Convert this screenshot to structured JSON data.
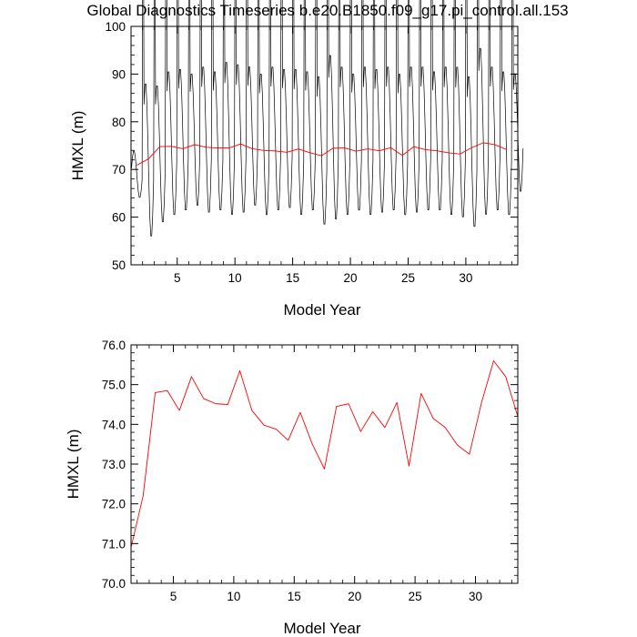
{
  "title": "Global Diagnostics Timeseries b.e20.B1850.f09_g17.pi_control.all.153",
  "colors": {
    "monthly": "#000000",
    "annual": "#ff0000",
    "frame": "#000000"
  },
  "chart_data": [
    {
      "type": "line",
      "xlabel": "Model Year",
      "ylabel": "HMXL (m)",
      "xlim": [
        1,
        34.5
      ],
      "ylim": [
        50,
        100
      ],
      "x_ticks": [
        5,
        10,
        15,
        20,
        25,
        30
      ],
      "x_tick_labels": [
        "5",
        "10",
        "15",
        "20",
        "25",
        "30"
      ],
      "y_ticks": [
        50,
        60,
        70,
        80,
        90,
        100
      ],
      "y_tick_labels": [
        "50",
        "60",
        "70",
        "80",
        "90",
        "100"
      ],
      "grid": false,
      "series": [
        {
          "color": "#000000",
          "resolution": "monthly",
          "start_year": 1.04,
          "months_per_year": 12,
          "yearly_max": [
            74,
            88.5,
            88,
            91,
            91.5,
            90.5,
            92,
            91,
            93,
            92.5,
            92,
            90.5,
            92,
            91.5,
            91.5,
            91,
            90,
            94.5,
            92,
            90.5,
            92,
            91.5,
            92,
            90.5,
            92,
            92,
            91,
            92,
            92,
            90,
            96,
            92,
            91,
            90.5
          ],
          "yearly_min": [
            64,
            55.5,
            58.5,
            60,
            61,
            62,
            60.5,
            61,
            60,
            60.5,
            62,
            60,
            61,
            61.5,
            60,
            61,
            58,
            59,
            60,
            61,
            60,
            60.5,
            61,
            60,
            60.5,
            61,
            61,
            60,
            59.5,
            57.5,
            60,
            61,
            60,
            65
          ]
        },
        {
          "color": "#ff0000",
          "resolution": "annual",
          "x": [
            1.5,
            2.5,
            3.5,
            4.5,
            5.5,
            6.5,
            7.5,
            8.5,
            9.5,
            10.5,
            11.5,
            12.5,
            13.5,
            14.5,
            15.5,
            16.5,
            17.5,
            18.5,
            19.5,
            20.5,
            21.5,
            22.5,
            23.5,
            24.5,
            25.5,
            26.5,
            27.5,
            28.5,
            29.5,
            30.5,
            31.5,
            32.5,
            33.5
          ],
          "values": [
            70.9,
            72.2,
            74.8,
            74.85,
            74.35,
            75.2,
            74.65,
            74.52,
            74.5,
            75.35,
            74.35,
            73.98,
            73.88,
            73.6,
            74.3,
            73.5,
            72.88,
            74.45,
            74.52,
            73.82,
            74.32,
            73.92,
            74.55,
            72.95,
            74.78,
            74.15,
            73.92,
            73.48,
            73.25,
            74.55,
            75.6,
            75.2,
            74.2
          ]
        }
      ]
    },
    {
      "type": "line",
      "xlabel": "Model Year",
      "ylabel": "HMXL (m)",
      "xlim": [
        1.5,
        33.5
      ],
      "ylim": [
        70,
        76
      ],
      "x_ticks": [
        5,
        10,
        15,
        20,
        25,
        30
      ],
      "x_tick_labels": [
        "5",
        "10",
        "15",
        "20",
        "25",
        "30"
      ],
      "y_ticks": [
        70,
        71,
        72,
        73,
        74,
        75,
        76
      ],
      "y_tick_labels": [
        "70.0",
        "71.0",
        "72.0",
        "73.0",
        "74.0",
        "75.0",
        "76.0"
      ],
      "grid": false,
      "series": [
        {
          "color": "#ff0000",
          "resolution": "annual",
          "x": [
            1.5,
            2.5,
            3.5,
            4.5,
            5.5,
            6.5,
            7.5,
            8.5,
            9.5,
            10.5,
            11.5,
            12.5,
            13.5,
            14.5,
            15.5,
            16.5,
            17.5,
            18.5,
            19.5,
            20.5,
            21.5,
            22.5,
            23.5,
            24.5,
            25.5,
            26.5,
            27.5,
            28.5,
            29.5,
            30.5,
            31.5,
            32.5,
            33.5
          ],
          "values": [
            70.9,
            72.2,
            74.8,
            74.85,
            74.35,
            75.2,
            74.65,
            74.52,
            74.5,
            75.35,
            74.35,
            73.98,
            73.88,
            73.6,
            74.3,
            73.5,
            72.88,
            74.45,
            74.52,
            73.82,
            74.32,
            73.92,
            74.55,
            72.95,
            74.78,
            74.15,
            73.92,
            73.48,
            73.25,
            74.55,
            75.6,
            75.2,
            74.2
          ]
        }
      ]
    }
  ]
}
